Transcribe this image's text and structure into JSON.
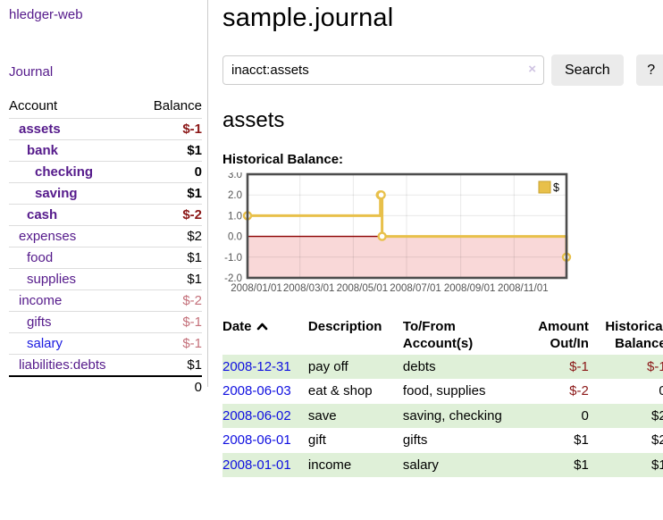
{
  "sidebar": {
    "app_title": "hledger-web",
    "nav": {
      "journal_label": "Journal"
    },
    "accounts": {
      "headers": {
        "account": "Account",
        "balance": "Balance"
      },
      "rows": [
        {
          "name": "assets",
          "balance": "$-1",
          "indent": 1,
          "bold": true,
          "neg": "strong",
          "link": "visited"
        },
        {
          "name": "bank",
          "balance": "$1",
          "indent": 2,
          "bold": true,
          "neg": null,
          "link": "visited"
        },
        {
          "name": "checking",
          "balance": "0",
          "indent": 3,
          "bold": true,
          "neg": null,
          "link": "visited"
        },
        {
          "name": "saving",
          "balance": "$1",
          "indent": 3,
          "bold": true,
          "neg": null,
          "link": "visited"
        },
        {
          "name": "cash",
          "balance": "$-2",
          "indent": 2,
          "bold": true,
          "neg": "strong",
          "link": "visited"
        },
        {
          "name": "expenses",
          "balance": "$2",
          "indent": 1,
          "bold": false,
          "neg": null,
          "link": "visited"
        },
        {
          "name": "food",
          "balance": "$1",
          "indent": 2,
          "bold": false,
          "neg": null,
          "link": "visited"
        },
        {
          "name": "supplies",
          "balance": "$1",
          "indent": 2,
          "bold": false,
          "neg": null,
          "link": "visited"
        },
        {
          "name": "income",
          "balance": "$-2",
          "indent": 1,
          "bold": false,
          "neg": "muted",
          "link": "visited"
        },
        {
          "name": "gifts",
          "balance": "$-1",
          "indent": 2,
          "bold": false,
          "neg": "muted",
          "link": "visited"
        },
        {
          "name": "salary",
          "balance": "$-1",
          "indent": 2,
          "bold": false,
          "neg": "muted",
          "link": "unvisited"
        },
        {
          "name": "liabilities:debts",
          "balance": "$1",
          "indent": 1,
          "bold": false,
          "neg": null,
          "link": "visited"
        }
      ],
      "total": "0"
    }
  },
  "main": {
    "title": "sample.journal",
    "search": {
      "value": "inacct:assets",
      "clear_icon": "×",
      "search_button": "Search",
      "help_button": "?"
    },
    "account_heading": "assets",
    "chart_label": "Historical Balance:",
    "register": {
      "headers": {
        "date": "Date",
        "description": "Description",
        "accounts": "To/From Account(s)",
        "amount": "Amount Out/In",
        "balance": "Historical Balance"
      },
      "rows": [
        {
          "date": "2008-12-31",
          "description": "pay off",
          "accounts": "debts",
          "amount": "$-1",
          "amount_neg": true,
          "balance": "$-1",
          "balance_neg": true,
          "green": true
        },
        {
          "date": "2008-06-03",
          "description": "eat & shop",
          "accounts": "food, supplies",
          "amount": "$-2",
          "amount_neg": true,
          "balance": "0",
          "balance_neg": false,
          "green": false
        },
        {
          "date": "2008-06-02",
          "description": "save",
          "accounts": "saving, checking",
          "amount": "0",
          "amount_neg": false,
          "balance": "$2",
          "balance_neg": false,
          "green": true
        },
        {
          "date": "2008-06-01",
          "description": "gift",
          "accounts": "gifts",
          "amount": "$1",
          "amount_neg": false,
          "balance": "$2",
          "balance_neg": false,
          "green": false
        },
        {
          "date": "2008-01-01",
          "description": "income",
          "accounts": "salary",
          "amount": "$1",
          "amount_neg": false,
          "balance": "$1",
          "balance_neg": false,
          "green": true
        }
      ]
    }
  },
  "chart_data": {
    "type": "line",
    "title": "Historical Balance:",
    "steps": true,
    "series": [
      {
        "name": "$",
        "color": "#e8c04a",
        "points": [
          {
            "x": "2008-01-01",
            "y": 1
          },
          {
            "x": "2008-06-01",
            "y": 2
          },
          {
            "x": "2008-06-02",
            "y": 2
          },
          {
            "x": "2008-06-03",
            "y": 0
          },
          {
            "x": "2008-12-31",
            "y": -1
          }
        ]
      }
    ],
    "xlim": [
      "2008-01-01",
      "2008-12-31"
    ],
    "ylim": [
      -2,
      3
    ],
    "x_ticks": [
      {
        "x": "2008-01-01",
        "label": "2008/01/01"
      },
      {
        "x": "2008-03-01",
        "label": "2008/03/01"
      },
      {
        "x": "2008-05-01",
        "label": "2008/05/01"
      },
      {
        "x": "2008-07-01",
        "label": "2008/07/01"
      },
      {
        "x": "2008-09-01",
        "label": "2008/09/01"
      },
      {
        "x": "2008-11-01",
        "label": "2008/11/01"
      }
    ],
    "y_ticks": [
      {
        "y": 3,
        "label": "3.0"
      },
      {
        "y": 2,
        "label": "2.0"
      },
      {
        "y": 1,
        "label": "1.0"
      },
      {
        "y": 0,
        "label": "0.0"
      },
      {
        "y": -1,
        "label": "-1.0"
      },
      {
        "y": -2,
        "label": "-2.0"
      }
    ],
    "legend": {
      "label": "$",
      "position": "top-right"
    },
    "grid": true,
    "colors": {
      "border": "#4d4d4d",
      "gridline": "rgba(0,0,0,0.09)",
      "zero_line": "#8b0000",
      "negative_region": "#f9d8d8",
      "tick_text": "#545454"
    }
  }
}
